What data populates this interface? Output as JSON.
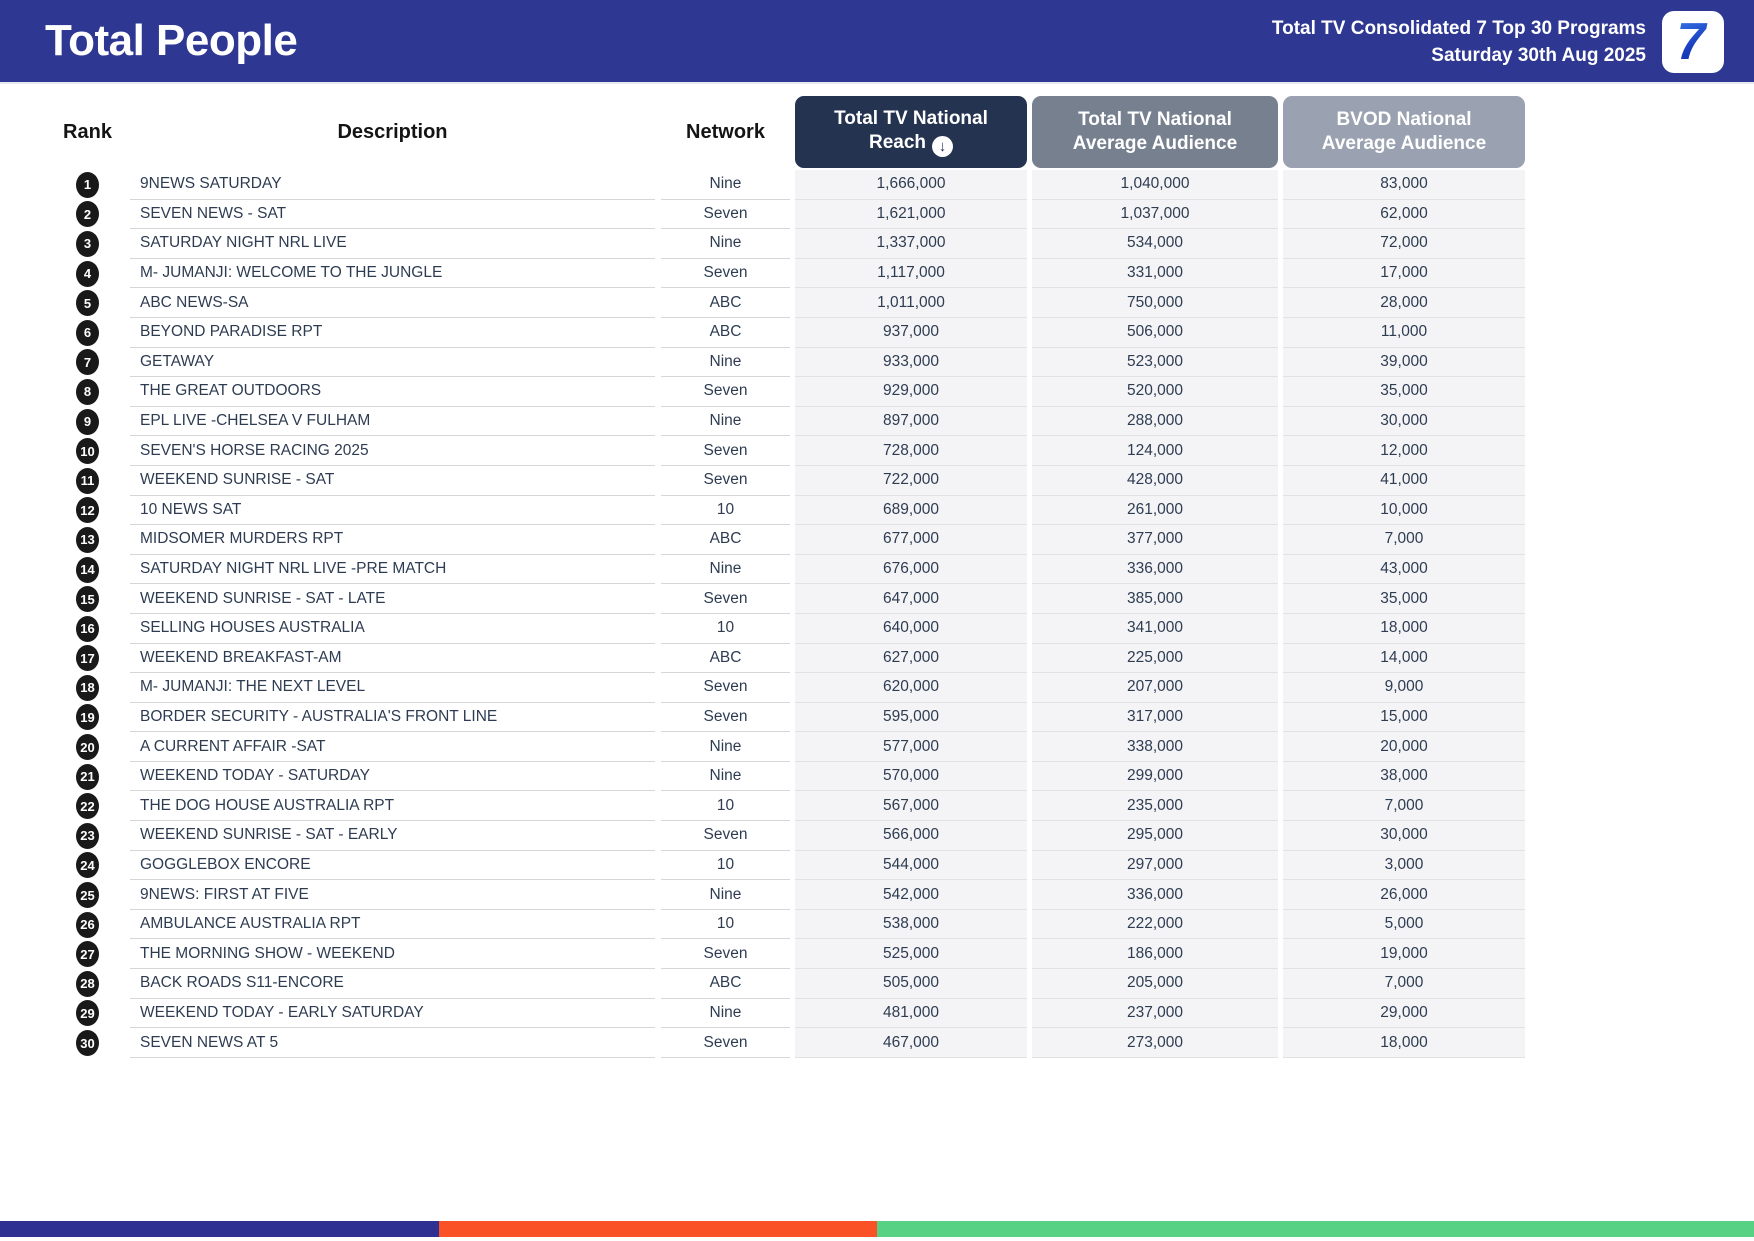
{
  "banner": {
    "title": "Total People",
    "report_line1": "Total TV Consolidated 7 Top 30 Programs",
    "report_line2": "Saturday 30th Aug 2025",
    "logo": "7"
  },
  "table": {
    "columns": {
      "rank": "Rank",
      "description": "Description",
      "network": "Network",
      "reach": "Total TV National Reach",
      "avg_audience": "Total TV National Average Audience",
      "bvod": "BVOD National Average Audience"
    },
    "sort_icon": "↓",
    "rows": [
      {
        "rank": "1",
        "description": "9NEWS SATURDAY",
        "network": "Nine",
        "reach": "1,666,000",
        "avg": "1,040,000",
        "bvod": "83,000"
      },
      {
        "rank": "2",
        "description": "SEVEN NEWS - SAT",
        "network": "Seven",
        "reach": "1,621,000",
        "avg": "1,037,000",
        "bvod": "62,000"
      },
      {
        "rank": "3",
        "description": "SATURDAY NIGHT NRL LIVE",
        "network": "Nine",
        "reach": "1,337,000",
        "avg": "534,000",
        "bvod": "72,000"
      },
      {
        "rank": "4",
        "description": "M- JUMANJI: WELCOME TO THE JUNGLE",
        "network": "Seven",
        "reach": "1,117,000",
        "avg": "331,000",
        "bvod": "17,000"
      },
      {
        "rank": "5",
        "description": "ABC NEWS-SA",
        "network": "ABC",
        "reach": "1,011,000",
        "avg": "750,000",
        "bvod": "28,000"
      },
      {
        "rank": "6",
        "description": "BEYOND PARADISE RPT",
        "network": "ABC",
        "reach": "937,000",
        "avg": "506,000",
        "bvod": "11,000"
      },
      {
        "rank": "7",
        "description": "GETAWAY",
        "network": "Nine",
        "reach": "933,000",
        "avg": "523,000",
        "bvod": "39,000"
      },
      {
        "rank": "8",
        "description": "THE GREAT OUTDOORS",
        "network": "Seven",
        "reach": "929,000",
        "avg": "520,000",
        "bvod": "35,000"
      },
      {
        "rank": "9",
        "description": "EPL LIVE -CHELSEA V FULHAM",
        "network": "Nine",
        "reach": "897,000",
        "avg": "288,000",
        "bvod": "30,000"
      },
      {
        "rank": "10",
        "description": "SEVEN'S HORSE RACING 2025",
        "network": "Seven",
        "reach": "728,000",
        "avg": "124,000",
        "bvod": "12,000"
      },
      {
        "rank": "11",
        "description": "WEEKEND SUNRISE - SAT",
        "network": "Seven",
        "reach": "722,000",
        "avg": "428,000",
        "bvod": "41,000"
      },
      {
        "rank": "12",
        "description": "10 NEWS SAT",
        "network": "10",
        "reach": "689,000",
        "avg": "261,000",
        "bvod": "10,000"
      },
      {
        "rank": "13",
        "description": "MIDSOMER MURDERS RPT",
        "network": "ABC",
        "reach": "677,000",
        "avg": "377,000",
        "bvod": "7,000"
      },
      {
        "rank": "14",
        "description": "SATURDAY NIGHT NRL LIVE -PRE MATCH",
        "network": "Nine",
        "reach": "676,000",
        "avg": "336,000",
        "bvod": "43,000"
      },
      {
        "rank": "15",
        "description": "WEEKEND SUNRISE - SAT - LATE",
        "network": "Seven",
        "reach": "647,000",
        "avg": "385,000",
        "bvod": "35,000"
      },
      {
        "rank": "16",
        "description": "SELLING HOUSES AUSTRALIA",
        "network": "10",
        "reach": "640,000",
        "avg": "341,000",
        "bvod": "18,000"
      },
      {
        "rank": "17",
        "description": "WEEKEND BREAKFAST-AM",
        "network": "ABC",
        "reach": "627,000",
        "avg": "225,000",
        "bvod": "14,000"
      },
      {
        "rank": "18",
        "description": "M- JUMANJI: THE NEXT LEVEL",
        "network": "Seven",
        "reach": "620,000",
        "avg": "207,000",
        "bvod": "9,000"
      },
      {
        "rank": "19",
        "description": "BORDER SECURITY - AUSTRALIA'S FRONT LINE",
        "network": "Seven",
        "reach": "595,000",
        "avg": "317,000",
        "bvod": "15,000"
      },
      {
        "rank": "20",
        "description": "A CURRENT AFFAIR -SAT",
        "network": "Nine",
        "reach": "577,000",
        "avg": "338,000",
        "bvod": "20,000"
      },
      {
        "rank": "21",
        "description": "WEEKEND TODAY - SATURDAY",
        "network": "Nine",
        "reach": "570,000",
        "avg": "299,000",
        "bvod": "38,000"
      },
      {
        "rank": "22",
        "description": "THE DOG HOUSE AUSTRALIA RPT",
        "network": "10",
        "reach": "567,000",
        "avg": "235,000",
        "bvod": "7,000"
      },
      {
        "rank": "23",
        "description": "WEEKEND SUNRISE - SAT - EARLY",
        "network": "Seven",
        "reach": "566,000",
        "avg": "295,000",
        "bvod": "30,000"
      },
      {
        "rank": "24",
        "description": "GOGGLEBOX ENCORE",
        "network": "10",
        "reach": "544,000",
        "avg": "297,000",
        "bvod": "3,000"
      },
      {
        "rank": "25",
        "description": "9NEWS: FIRST AT FIVE",
        "network": "Nine",
        "reach": "542,000",
        "avg": "336,000",
        "bvod": "26,000"
      },
      {
        "rank": "26",
        "description": "AMBULANCE AUSTRALIA RPT",
        "network": "10",
        "reach": "538,000",
        "avg": "222,000",
        "bvod": "5,000"
      },
      {
        "rank": "27",
        "description": "THE MORNING SHOW - WEEKEND",
        "network": "Seven",
        "reach": "525,000",
        "avg": "186,000",
        "bvod": "19,000"
      },
      {
        "rank": "28",
        "description": "BACK ROADS S11-ENCORE",
        "network": "ABC",
        "reach": "505,000",
        "avg": "205,000",
        "bvod": "7,000"
      },
      {
        "rank": "29",
        "description": "WEEKEND TODAY - EARLY SATURDAY",
        "network": "Nine",
        "reach": "481,000",
        "avg": "237,000",
        "bvod": "29,000"
      },
      {
        "rank": "30",
        "description": "SEVEN NEWS AT 5",
        "network": "Seven",
        "reach": "467,000",
        "avg": "273,000",
        "bvod": "18,000"
      }
    ]
  },
  "footer": {
    "segments": [
      {
        "name": "blue",
        "color": "#2e3192",
        "width_pct": 25
      },
      {
        "name": "orange",
        "color": "#fb5126",
        "width_pct": 25
      },
      {
        "name": "green",
        "color": "#57d183",
        "width_pct": 50
      }
    ]
  },
  "colors": {
    "banner_bg": "#2e3792",
    "reach_header_bg": "#243350",
    "avg_header_bg": "#76808f",
    "bvod_header_bg": "#9aa1b0",
    "row_text": "#2e3c52",
    "rank_badge_bg": "#191919"
  }
}
